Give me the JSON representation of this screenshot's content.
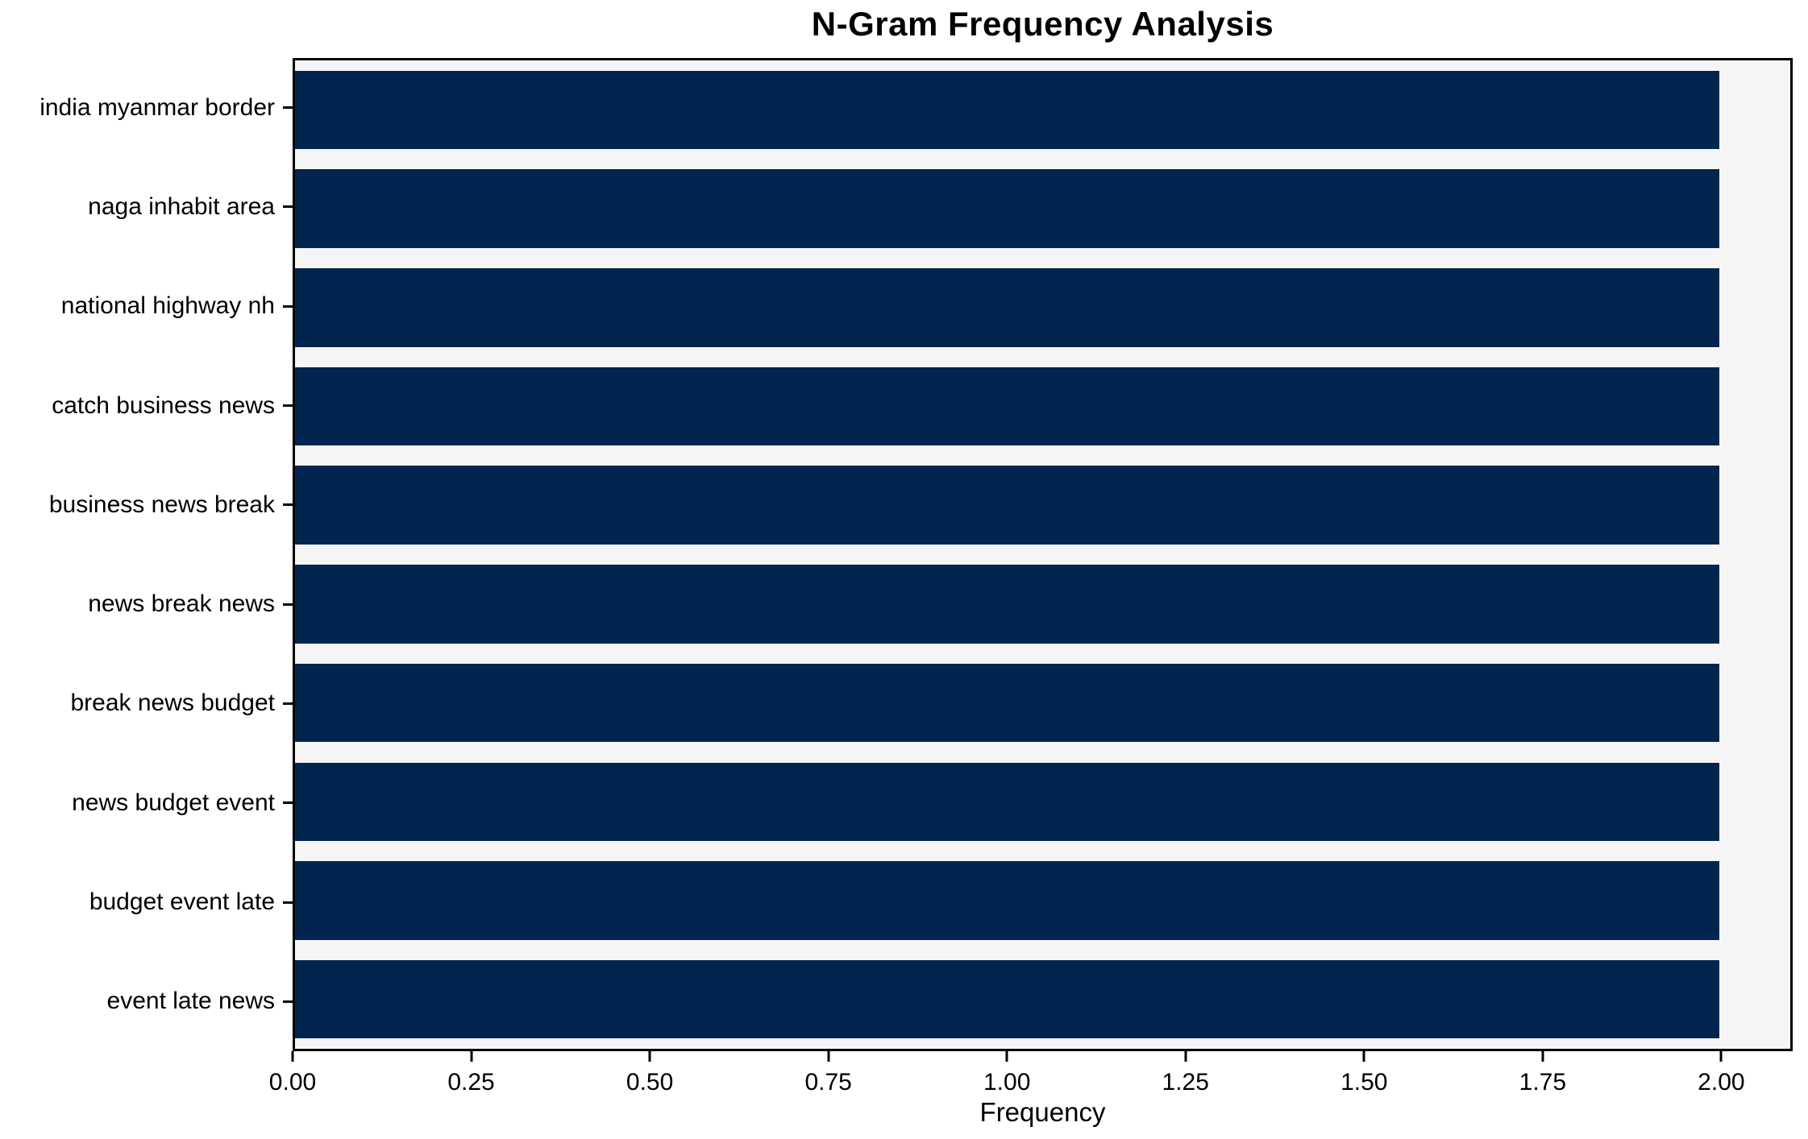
{
  "chart_data": {
    "type": "bar",
    "orientation": "horizontal",
    "title": "N-Gram Frequency Analysis",
    "xlabel": "Frequency",
    "categories": [
      "india myanmar border",
      "naga inhabit area",
      "national highway nh",
      "catch business news",
      "business news break",
      "news break news",
      "break news budget",
      "news budget event",
      "budget event late",
      "event late news"
    ],
    "values": [
      2,
      2,
      2,
      2,
      2,
      2,
      2,
      2,
      2,
      2
    ],
    "xlim": [
      0,
      2.1
    ],
    "xticks": [
      0,
      0.25,
      0.5,
      0.75,
      1,
      1.25,
      1.5,
      1.75,
      2
    ],
    "xtick_labels": [
      "0.00",
      "0.25",
      "0.50",
      "0.75",
      "1.00",
      "1.25",
      "1.50",
      "1.75",
      "2.00"
    ],
    "grid": false,
    "legend": false,
    "colors": {
      "bar": "#02254f",
      "plot_background": "#f5f5f5",
      "figure_background": "#ffffff",
      "spine": "#000000",
      "text": "#000000"
    }
  }
}
